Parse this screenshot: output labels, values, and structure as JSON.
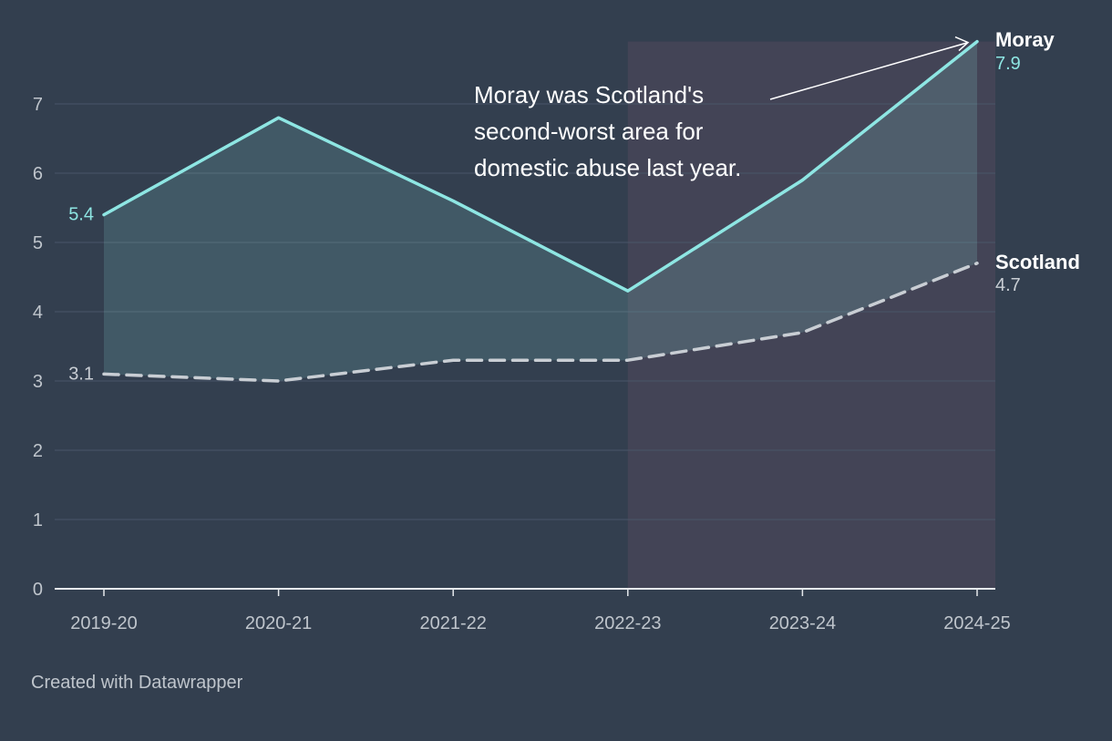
{
  "chart_data": {
    "type": "line",
    "categories": [
      "2019-20",
      "2020-21",
      "2021-22",
      "2022-23",
      "2023-24",
      "2024-25"
    ],
    "series": [
      {
        "name": "Moray",
        "values": [
          5.4,
          6.8,
          5.6,
          4.3,
          5.9,
          7.9
        ],
        "color": "#8ee6e3",
        "dash": false
      },
      {
        "name": "Scotland",
        "values": [
          3.1,
          3.0,
          3.3,
          3.3,
          3.7,
          4.7
        ],
        "color": "#c9ced4",
        "dash": true
      }
    ],
    "ylim": [
      0,
      7.9
    ],
    "yticks": [
      "0",
      "1",
      "2",
      "3",
      "4",
      "5",
      "6",
      "7"
    ],
    "start_labels": {
      "Moray": "5.4",
      "Scotland": "3.1"
    },
    "end_labels": {
      "Moray": {
        "name": "Moray",
        "value": "7.9"
      },
      "Scotland": {
        "name": "Scotland",
        "value": "4.7"
      }
    },
    "highlight_range": [
      "2022-23",
      "2024-25"
    ],
    "annotation": {
      "lines": [
        "Moray was Scotland's",
        "second-worst area for",
        "domestic abuse last year."
      ],
      "target": {
        "category": "2024-25",
        "value": 7.9
      }
    },
    "grid": true,
    "xlabel": "",
    "ylabel": ""
  },
  "colors": {
    "background": "#333f4f",
    "grid": "#4a5668",
    "axis": "#e6e9ec",
    "tick_text": "#bfc5cc",
    "highlight": "#434456",
    "area_fill": "#8ee6e3"
  },
  "footer": {
    "credit": "Created with Datawrapper"
  }
}
